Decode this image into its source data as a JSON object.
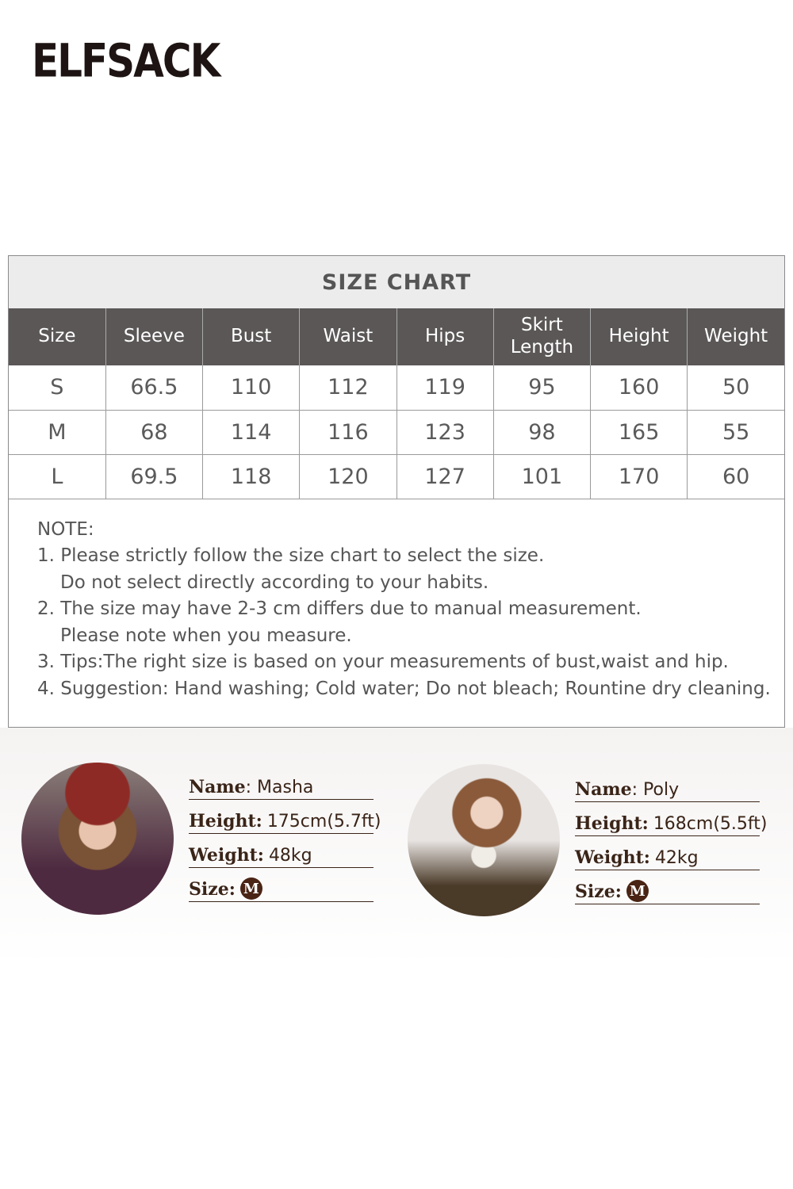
{
  "brand": {
    "logo": "ELFSACK"
  },
  "size_chart": {
    "title": "SIZE CHART",
    "headers": [
      "Size",
      "Sleeve",
      "Bust",
      "Waist",
      "Hips",
      "Skirt Length",
      "Height",
      "Weight"
    ],
    "rows": [
      [
        "S",
        "66.5",
        "110",
        "112",
        "119",
        "95",
        "160",
        "50"
      ],
      [
        "M",
        "68",
        "114",
        "116",
        "123",
        "98",
        "165",
        "55"
      ],
      [
        "L",
        "69.5",
        "118",
        "120",
        "127",
        "101",
        "170",
        "60"
      ]
    ]
  },
  "notes": {
    "heading": "NOTE:",
    "lines": [
      "1. Please strictly follow the size chart to select the size.",
      "Do not select directly according to your habits.",
      "2. The size may have 2-3 cm differs due to manual measurement.",
      "Please note when you measure.",
      "3. Tips:The right size is based on your measurements of bust,waist and hip.",
      "4. Suggestion: Hand washing; Cold water; Do not bleach; Rountine dry cleaning."
    ]
  },
  "models": [
    {
      "name_label": "Name",
      "name": ": Masha",
      "height_label": "Height:",
      "height": "175cm(5.7ft)",
      "weight_label": "Weight:",
      "weight": "48kg",
      "size_label": "Size:",
      "size": "M"
    },
    {
      "name_label": "Name",
      "name": ": Poly",
      "height_label": "Height:",
      "height": "168cm(5.5ft)",
      "weight_label": "Weight:",
      "weight": "42kg",
      "size_label": "Size:",
      "size": "M"
    }
  ]
}
